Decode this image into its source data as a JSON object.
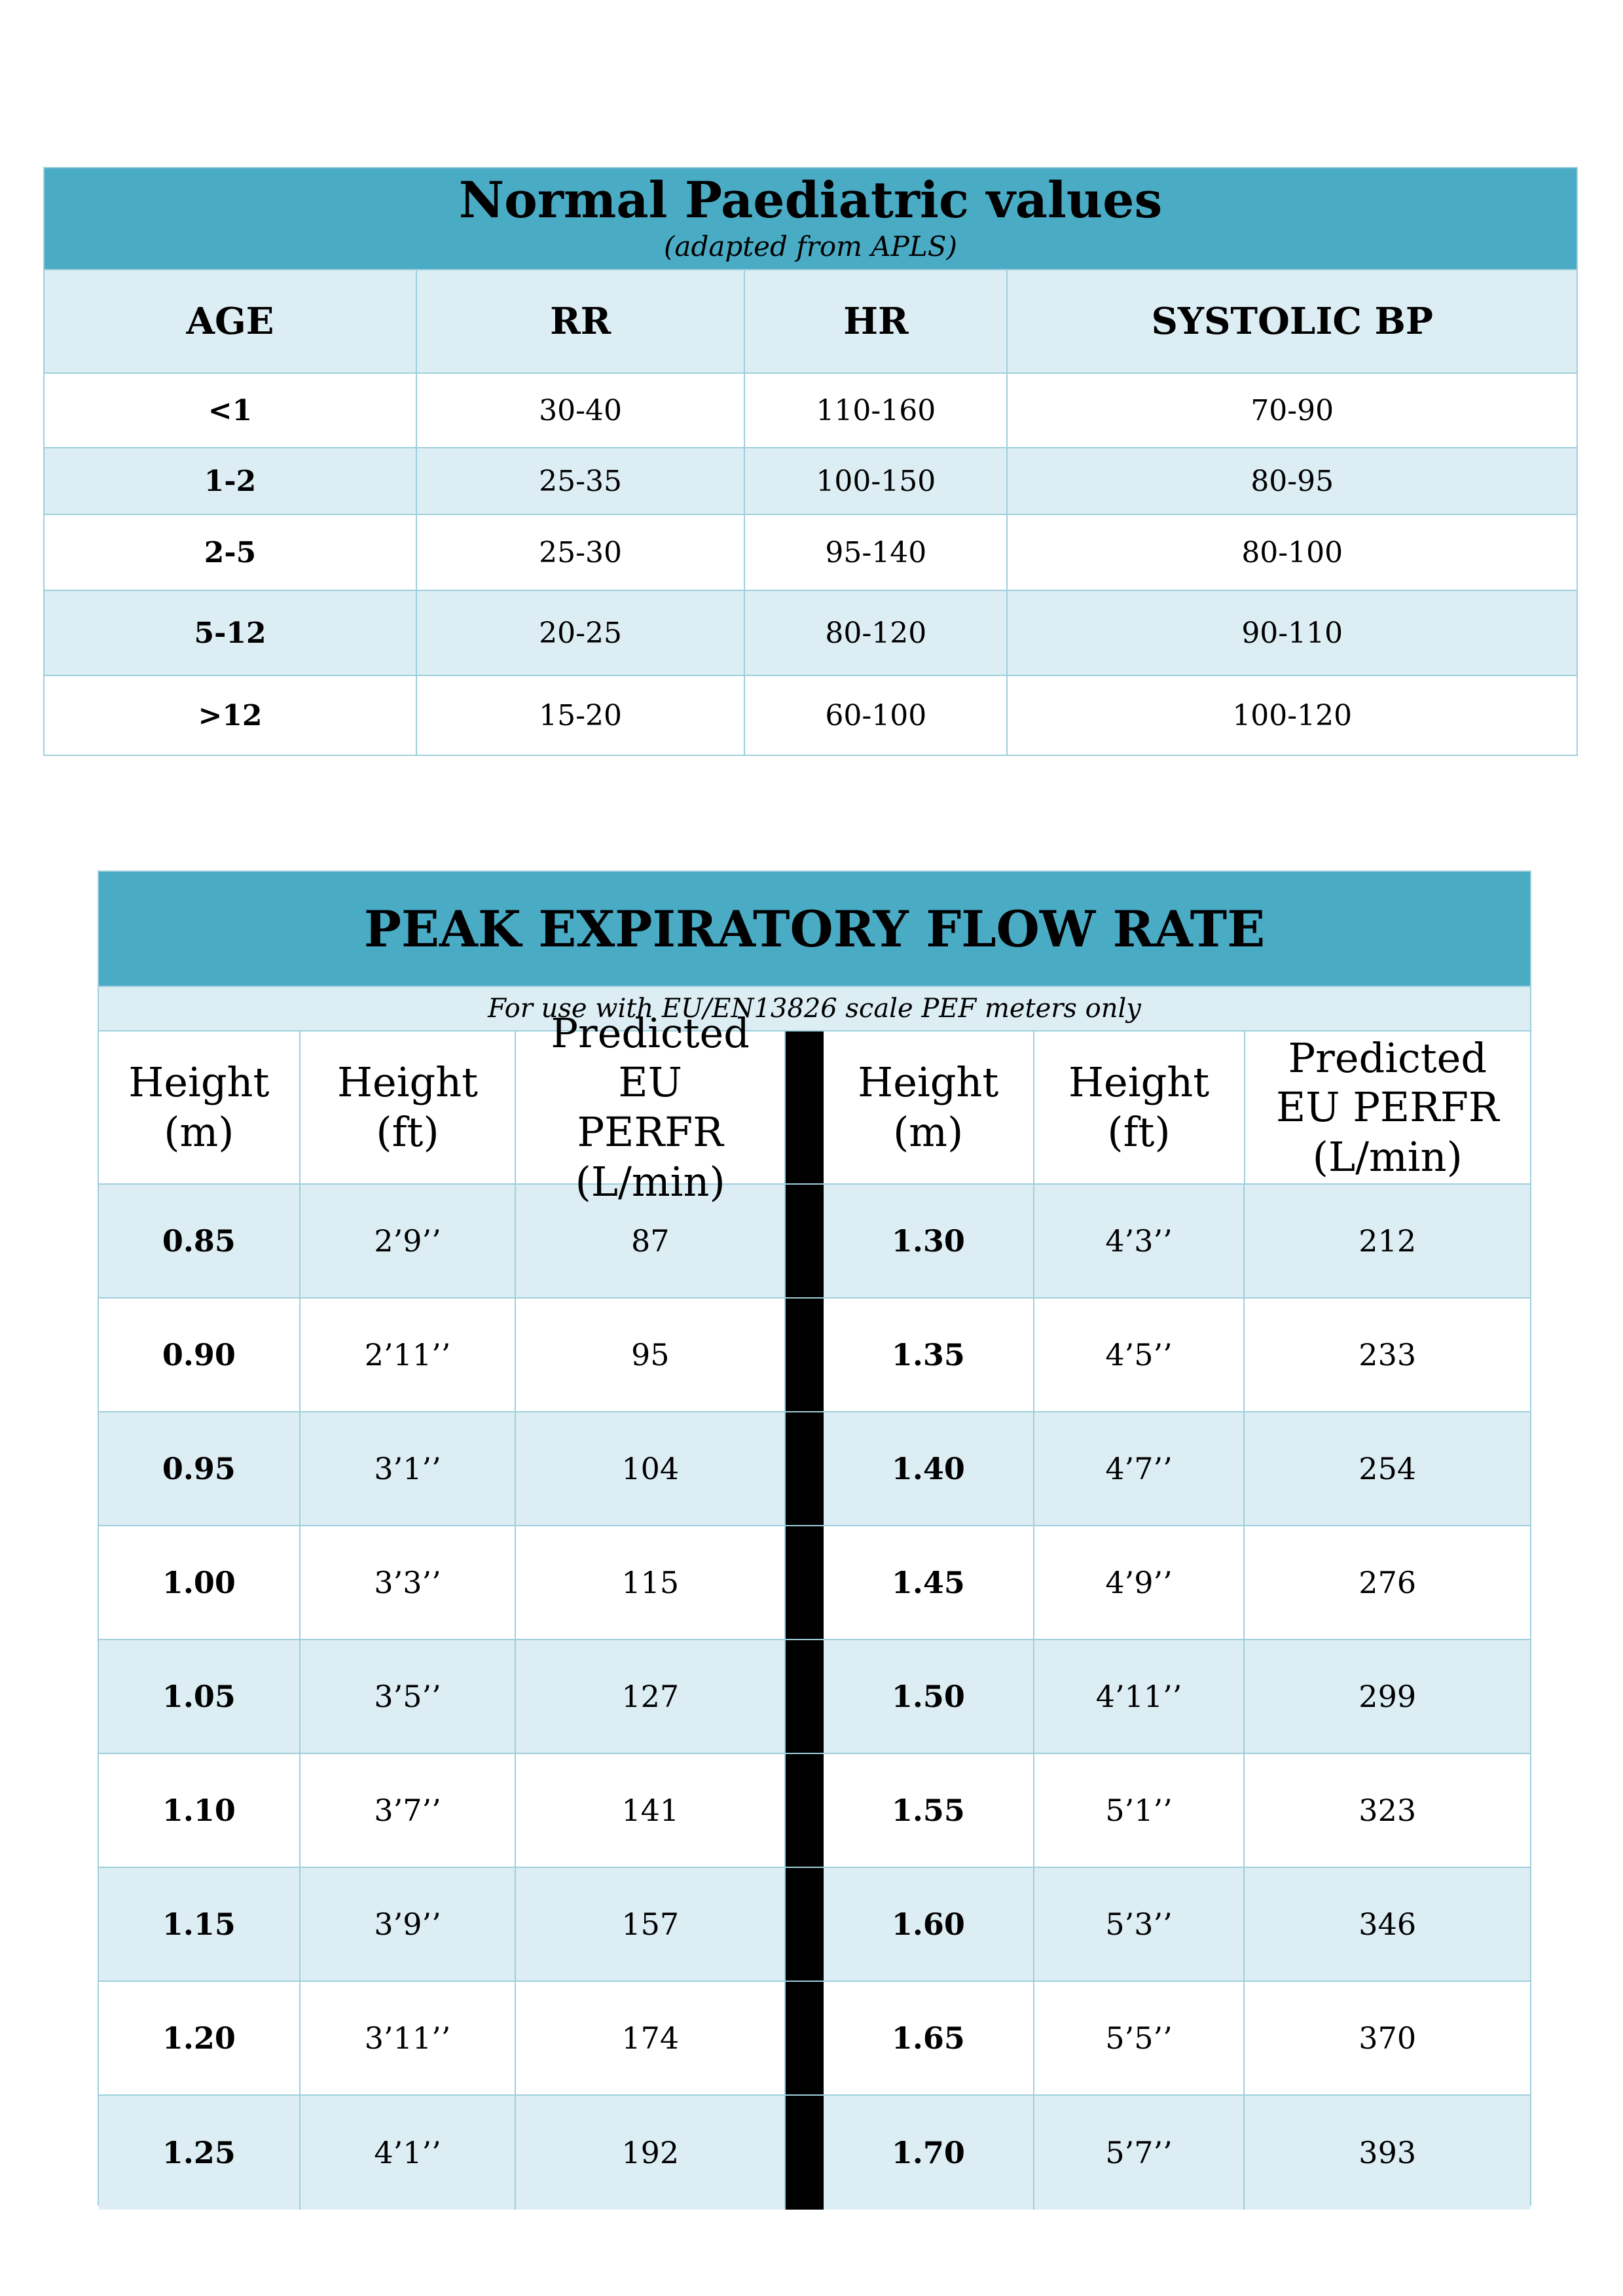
{
  "paediatric": {
    "title": "Normal Paediatric values",
    "subtitle": "(adapted from APLS)",
    "headers": [
      "AGE",
      "RR",
      "HR",
      "SYSTOLIC BP"
    ],
    "rows": [
      [
        "<1",
        "30-40",
        "110-160",
        "70-90"
      ],
      [
        "1-2",
        "25-35",
        "100-150",
        "80-95"
      ],
      [
        "2-5",
        "25-30",
        "95-140",
        "80-100"
      ],
      [
        "5-12",
        "20-25",
        "80-120",
        "90-110"
      ],
      [
        ">12",
        "15-20",
        "60-100",
        "100-120"
      ]
    ]
  },
  "pefr": {
    "title": "PEAK EXPIRATORY FLOW RATE",
    "note": "For use with EU/EN13826 scale PEF meters only",
    "headers_left": [
      "Height (m)",
      "Height (ft)",
      "Predicted EU PERFR (L/min)"
    ],
    "headers_right": [
      "Height (m)",
      "Height (ft)",
      "Predicted EU PERFR (L/min)"
    ],
    "rows": [
      [
        "0.85",
        "2’9’’",
        "87",
        "1.30",
        "4’3’’",
        "212"
      ],
      [
        "0.90",
        "2’11’’",
        "95",
        "1.35",
        "4’5’’",
        "233"
      ],
      [
        "0.95",
        "3’1’’",
        "104",
        "1.40",
        "4’7’’",
        "254"
      ],
      [
        "1.00",
        "3’3’’",
        "115",
        "1.45",
        "4’9’’",
        "276"
      ],
      [
        "1.05",
        "3’5’’",
        "127",
        "1.50",
        "4’11’’",
        "299"
      ],
      [
        "1.10",
        "3’7’’",
        "141",
        "1.55",
        "5’1’’",
        "323"
      ],
      [
        "1.15",
        "3’9’’",
        "157",
        "1.60",
        "5’3’’",
        "346"
      ],
      [
        "1.20",
        "3’11’’",
        "174",
        "1.65",
        "5’5’’",
        "370"
      ],
      [
        "1.25",
        "4’1’’",
        "192",
        "1.70",
        "5’7’’",
        "393"
      ]
    ]
  },
  "colors": {
    "header_band": "#4aabc5",
    "light_row": "#dcedf3",
    "border": "#9fcfdc",
    "separator": "#000000"
  }
}
